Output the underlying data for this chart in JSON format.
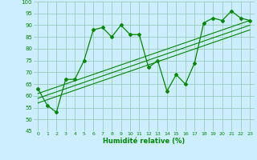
{
  "xlabel": "Humidité relative (%)",
  "background_color": "#cceeff",
  "grid_color": "#99ccbb",
  "line_color": "#008800",
  "xlim": [
    -0.5,
    23.5
  ],
  "ylim": [
    45,
    100
  ],
  "yticks": [
    45,
    50,
    55,
    60,
    65,
    70,
    75,
    80,
    85,
    90,
    95,
    100
  ],
  "xticks": [
    0,
    1,
    2,
    3,
    4,
    5,
    6,
    7,
    8,
    9,
    10,
    11,
    12,
    13,
    14,
    15,
    16,
    17,
    18,
    19,
    20,
    21,
    22,
    23
  ],
  "series1_x": [
    0,
    1,
    2,
    3,
    4,
    5,
    6,
    7,
    8,
    9,
    10,
    11,
    12,
    13,
    14,
    15,
    16,
    17,
    18,
    19,
    20,
    21,
    22,
    23
  ],
  "series1_y": [
    63,
    56,
    53,
    67,
    67,
    75,
    88,
    89,
    85,
    90,
    86,
    86,
    72,
    75,
    62,
    69,
    65,
    74,
    91,
    93,
    92,
    96,
    93,
    92
  ],
  "trend1_x": [
    0,
    23
  ],
  "trend1_y": [
    61,
    92
  ],
  "trend2_x": [
    0,
    23
  ],
  "trend2_y": [
    59,
    90
  ],
  "trend3_x": [
    0,
    23
  ],
  "trend3_y": [
    57,
    88
  ],
  "xlabel_fontsize": 6.0,
  "xtick_fontsize": 4.5,
  "ytick_fontsize": 5.0
}
